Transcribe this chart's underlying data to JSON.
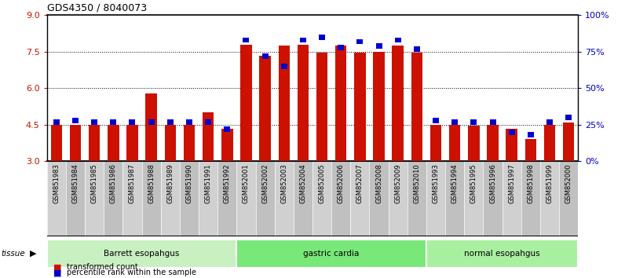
{
  "title": "GDS4350 / 8040073",
  "samples": [
    "GSM851983",
    "GSM851984",
    "GSM851985",
    "GSM851986",
    "GSM851987",
    "GSM851988",
    "GSM851989",
    "GSM851990",
    "GSM851991",
    "GSM851992",
    "GSM852001",
    "GSM852002",
    "GSM852003",
    "GSM852004",
    "GSM852005",
    "GSM852006",
    "GSM852007",
    "GSM852008",
    "GSM852009",
    "GSM852010",
    "GSM851993",
    "GSM851994",
    "GSM851995",
    "GSM851996",
    "GSM851997",
    "GSM851998",
    "GSM851999",
    "GSM852000"
  ],
  "red_values": [
    4.5,
    4.5,
    4.5,
    4.5,
    4.5,
    5.8,
    4.5,
    4.5,
    5.0,
    4.35,
    7.8,
    7.35,
    7.75,
    7.8,
    7.45,
    7.75,
    7.45,
    7.5,
    7.75,
    7.45,
    4.5,
    4.5,
    4.45,
    4.5,
    4.35,
    3.9,
    4.5,
    4.6
  ],
  "blue_values": [
    27,
    28,
    27,
    27,
    27,
    27,
    27,
    27,
    27,
    22,
    83,
    72,
    65,
    83,
    85,
    78,
    82,
    79,
    83,
    77,
    28,
    27,
    27,
    27,
    20,
    18,
    27,
    30
  ],
  "groups": [
    {
      "label": "Barrett esopahgus",
      "start": 0,
      "end": 10,
      "color": "#c8f0c0"
    },
    {
      "label": "gastric cardia",
      "start": 10,
      "end": 20,
      "color": "#78e878"
    },
    {
      "label": "normal esopahgus",
      "start": 20,
      "end": 28,
      "color": "#a8f0a0"
    }
  ],
  "ylim_left": [
    3,
    9
  ],
  "ylim_right": [
    0,
    100
  ],
  "yticks_left": [
    3,
    4.5,
    6,
    7.5,
    9
  ],
  "yticks_right": [
    0,
    25,
    50,
    75,
    100
  ],
  "ytick_labels_right": [
    "0%",
    "25%",
    "50%",
    "75%",
    "100%"
  ],
  "bar_color_red": "#cc1100",
  "bar_color_blue": "#0000cc",
  "grid_color": "black",
  "title_fontsize": 9,
  "tick_fontsize": 8,
  "label_fontsize": 6
}
